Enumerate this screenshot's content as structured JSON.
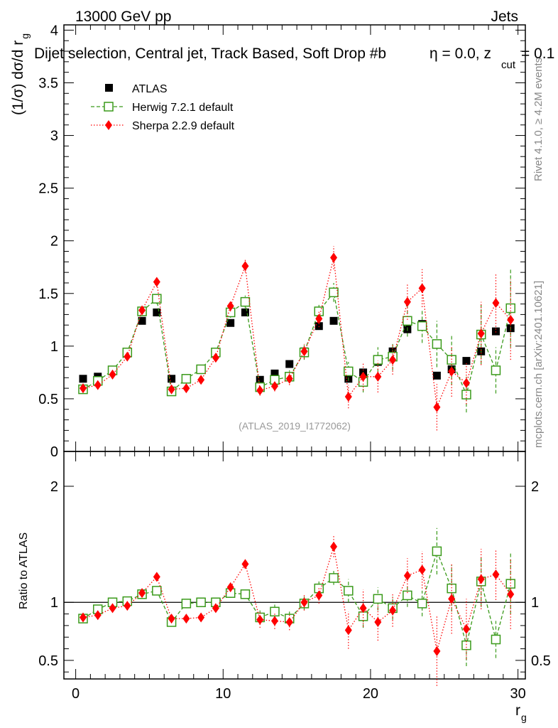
{
  "header": {
    "left": "13000 GeV pp",
    "right": "Jets",
    "title": "Dijet selection, Central jet, Track Based, Soft Drop #b",
    "title_tail": "η = 0.0, z",
    "title_sub": "cut",
    "title_end": "= 0.1",
    "analysis_id": "(ATLAS_2019_I1772062)",
    "side_rivet": "Rivet 4.1.0, ≥ 4.2M events",
    "side_site": "mcplots.cern.ch [arXiv:2401.10621]"
  },
  "colors": {
    "atlas": "#000000",
    "herwig": "#3a9a1a",
    "sherpa": "#ff0000"
  },
  "chart_data": [
    {
      "type": "scatter",
      "panel": "main",
      "ylabel": "(1/σ) dσ/d r",
      "ylabel_sub": "g",
      "ylim": [
        0,
        4.05
      ],
      "xlim": [
        -0.8,
        30.5
      ],
      "yticks": [
        0,
        0.5,
        1,
        1.5,
        2,
        2.5,
        3,
        3.5,
        4
      ],
      "ytick_labels": [
        "0",
        "0.5",
        "1",
        "1.5",
        "2",
        "2.5",
        "3",
        "3.5",
        "4"
      ],
      "x": [
        0.5,
        1.5,
        2.5,
        3.5,
        4.5,
        5.5,
        6.5,
        7.5,
        8.5,
        9.5,
        10.5,
        11.5,
        12.5,
        13.5,
        14.5,
        15.5,
        16.5,
        17.5,
        18.5,
        19.5,
        20.5,
        21.5,
        22.5,
        23.5,
        24.5,
        25.5,
        26.5,
        27.5,
        28.5,
        29.5
      ],
      "legend": [
        "ATLAS",
        "Herwig 7.2.1 default",
        "Sherpa 2.2.9 default"
      ],
      "series": [
        {
          "name": "ATLAS",
          "values": [
            0.69,
            0.71,
            0.77,
            0.93,
            1.24,
            1.32,
            0.69,
            0.69,
            0.78,
            0.94,
            1.22,
            1.32,
            0.68,
            0.74,
            0.83,
            0.95,
            1.19,
            1.24,
            0.69,
            0.75,
            0.85,
            0.95,
            1.16,
            1.21,
            0.72,
            0.78,
            0.86,
            0.95,
            1.14,
            1.17
          ],
          "errors": [
            0.01,
            0.01,
            0.01,
            0.01,
            0.01,
            0.01,
            0.01,
            0.01,
            0.01,
            0.01,
            0.01,
            0.01,
            0.01,
            0.01,
            0.01,
            0.01,
            0.01,
            0.01,
            0.01,
            0.01,
            0.01,
            0.01,
            0.01,
            0.01,
            0.01,
            0.01,
            0.01,
            0.01,
            0.01,
            0.01
          ]
        },
        {
          "name": "Herwig 7.2.1 default",
          "values": [
            0.59,
            0.67,
            0.77,
            0.94,
            1.33,
            1.45,
            0.57,
            0.69,
            0.78,
            0.94,
            1.32,
            1.42,
            0.61,
            0.68,
            0.71,
            0.94,
            1.33,
            1.51,
            0.76,
            0.66,
            0.87,
            0.9,
            1.24,
            1.19,
            1.02,
            0.87,
            0.54,
            1.11,
            0.77,
            1.36
          ],
          "errors": [
            0.02,
            0.02,
            0.02,
            0.03,
            0.04,
            0.05,
            0.03,
            0.03,
            0.03,
            0.04,
            0.05,
            0.06,
            0.05,
            0.05,
            0.06,
            0.07,
            0.08,
            0.09,
            0.09,
            0.1,
            0.12,
            0.13,
            0.15,
            0.16,
            0.22,
            0.24,
            0.17,
            0.28,
            0.22,
            0.37
          ]
        },
        {
          "name": "Sherpa 2.2.9 default",
          "values": [
            0.6,
            0.63,
            0.73,
            0.9,
            1.34,
            1.61,
            0.59,
            0.6,
            0.68,
            0.89,
            1.38,
            1.76,
            0.58,
            0.62,
            0.69,
            0.95,
            1.26,
            1.84,
            0.52,
            0.71,
            0.71,
            0.87,
            1.42,
            1.55,
            0.42,
            0.76,
            0.65,
            1.12,
            1.41,
            1.25
          ],
          "errors": [
            0.02,
            0.02,
            0.02,
            0.03,
            0.04,
            0.05,
            0.03,
            0.03,
            0.03,
            0.04,
            0.05,
            0.06,
            0.05,
            0.05,
            0.06,
            0.07,
            0.08,
            0.11,
            0.11,
            0.13,
            0.15,
            0.14,
            0.17,
            0.18,
            0.22,
            0.24,
            0.2,
            0.3,
            0.28,
            0.38
          ]
        }
      ]
    },
    {
      "type": "scatter",
      "panel": "ratio",
      "ylabel": "Ratio to ATLAS",
      "xlabel": "r",
      "xlabel_sub": "g",
      "ylim": [
        0.34,
        2.3
      ],
      "xlim": [
        -0.8,
        30.5
      ],
      "xticks": [
        0,
        10,
        20,
        30
      ],
      "xtick_labels": [
        "0",
        "10",
        "20",
        "30"
      ],
      "yticks": [
        0.5,
        1,
        2
      ],
      "ytick_labels": [
        "0.5",
        "1",
        "2"
      ],
      "reference_line": 1,
      "x": [
        0.5,
        1.5,
        2.5,
        3.5,
        4.5,
        5.5,
        6.5,
        7.5,
        8.5,
        9.5,
        10.5,
        11.5,
        12.5,
        13.5,
        14.5,
        15.5,
        16.5,
        17.5,
        18.5,
        19.5,
        20.5,
        21.5,
        22.5,
        23.5,
        24.5,
        25.5,
        26.5,
        27.5,
        28.5,
        29.5
      ],
      "series": [
        {
          "name": "Herwig 7.2.1 default",
          "values": [
            0.86,
            0.94,
            1.0,
            1.01,
            1.07,
            1.1,
            0.83,
            0.99,
            1.0,
            1.0,
            1.08,
            1.07,
            0.87,
            0.92,
            0.86,
            0.99,
            1.12,
            1.21,
            1.1,
            0.88,
            1.03,
            0.95,
            1.06,
            0.99,
            1.44,
            1.12,
            0.63,
            1.18,
            0.68,
            1.16
          ],
          "errors": [
            0.02,
            0.02,
            0.02,
            0.02,
            0.03,
            0.03,
            0.03,
            0.03,
            0.03,
            0.03,
            0.04,
            0.04,
            0.06,
            0.06,
            0.06,
            0.06,
            0.06,
            0.06,
            0.1,
            0.1,
            0.1,
            0.1,
            0.1,
            0.11,
            0.2,
            0.2,
            0.18,
            0.22,
            0.16,
            0.26
          ]
        },
        {
          "name": "Sherpa 2.2.9 default",
          "values": [
            0.87,
            0.89,
            0.95,
            0.97,
            1.08,
            1.22,
            0.86,
            0.86,
            0.87,
            0.95,
            1.13,
            1.33,
            0.85,
            0.84,
            0.83,
            1.0,
            1.06,
            1.48,
            0.76,
            0.95,
            0.83,
            0.93,
            1.23,
            1.28,
            0.58,
            1.03,
            0.77,
            1.2,
            1.24,
            1.07
          ],
          "errors": [
            0.02,
            0.02,
            0.02,
            0.02,
            0.03,
            0.03,
            0.03,
            0.03,
            0.03,
            0.03,
            0.04,
            0.04,
            0.07,
            0.07,
            0.07,
            0.07,
            0.07,
            0.09,
            0.16,
            0.16,
            0.16,
            0.14,
            0.15,
            0.16,
            0.3,
            0.3,
            0.26,
            0.26,
            0.22,
            0.3
          ]
        }
      ]
    }
  ]
}
